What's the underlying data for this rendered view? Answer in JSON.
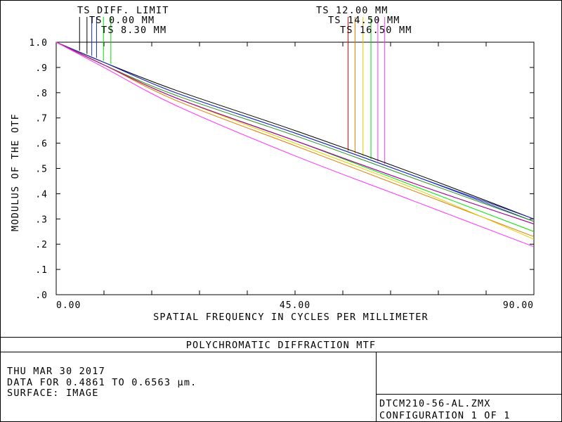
{
  "chart_data": {
    "type": "line",
    "xlabel": "SPATIAL FREQUENCY IN CYCLES PER MILLIMETER",
    "ylabel": "MODULUS OF THE OTF",
    "xlim": [
      0,
      90
    ],
    "ylim": [
      0,
      1
    ],
    "x_tick_labels": [
      "0.00",
      "45.00",
      "90.00"
    ],
    "y_tick_labels": [
      ".0",
      ".1",
      ".2",
      ".3",
      ".4",
      ".5",
      ".6",
      ".7",
      ".8",
      ".9",
      "1.0"
    ],
    "grid": false,
    "x": [
      0,
      9,
      22.5,
      45,
      67.5,
      90
    ],
    "series": [
      {
        "name": "TS DIFF. LIMIT",
        "color": "#000000",
        "values": [
          1.0,
          0.92,
          0.81,
          0.65,
          0.48,
          0.3
        ]
      },
      {
        "name": "TS 0.00 MM",
        "color": "#1a2bb0",
        "values": [
          1.0,
          0.92,
          0.8,
          0.64,
          0.47,
          0.3
        ]
      },
      {
        "name": "TS 8.30 MM",
        "color": "#1a2bb0",
        "values": [
          1.0,
          0.92,
          0.8,
          0.64,
          0.47,
          0.29
        ]
      },
      {
        "name": "TS 8.30 MM",
        "color": "#2d8f2d",
        "values": [
          1.0,
          0.91,
          0.79,
          0.63,
          0.46,
          0.29
        ]
      },
      {
        "name": "TS 8.30 MM",
        "color": "#00e000",
        "values": [
          1.0,
          0.91,
          0.78,
          0.61,
          0.43,
          0.25
        ]
      },
      {
        "name": "TS 12.00 MM",
        "color": "#ff0000",
        "values": [
          1.0,
          0.91,
          0.78,
          0.61,
          0.44,
          0.28
        ]
      },
      {
        "name": "TS 14.50 MM",
        "color": "#e07a00",
        "values": [
          1.0,
          0.91,
          0.77,
          0.59,
          0.41,
          0.23
        ]
      },
      {
        "name": "TS 14.50 MM",
        "color": "#e0d000",
        "values": [
          1.0,
          0.91,
          0.78,
          0.6,
          0.42,
          0.22
        ]
      },
      {
        "name": "TS 16.50 MM",
        "color": "#a000b0",
        "values": [
          1.0,
          0.91,
          0.78,
          0.61,
          0.44,
          0.28
        ]
      },
      {
        "name": "TS 16.50 MM",
        "color": "#ff30ff",
        "values": [
          1.0,
          0.9,
          0.75,
          0.55,
          0.37,
          0.19
        ]
      }
    ],
    "legend_groups": [
      {
        "labels": [
          "TS DIFF. LIMIT",
          "TS 0.00 MM",
          "TS 8.30 MM"
        ]
      },
      {
        "labels": [
          "TS 12.00 MM",
          "TS 14.50 MM",
          "TS 16.50 MM"
        ]
      }
    ],
    "legend_markers": [
      {
        "x": 4.4,
        "color": "#000000"
      },
      {
        "x": 5.8,
        "color": "#000000"
      },
      {
        "x": 6.7,
        "color": "#1a2bb0"
      },
      {
        "x": 7.6,
        "color": "#1a2bb0"
      },
      {
        "x": 8.9,
        "color": "#00e000"
      },
      {
        "x": 10.3,
        "color": "#00e000"
      },
      {
        "x": 55.0,
        "color": "#ff0000"
      },
      {
        "x": 56.3,
        "color": "#e07a00"
      },
      {
        "x": 57.8,
        "color": "#e0d000"
      },
      {
        "x": 59.3,
        "color": "#00e000"
      },
      {
        "x": 60.6,
        "color": "#ff30ff"
      },
      {
        "x": 61.9,
        "color": "#ff30ff"
      }
    ]
  },
  "footer": {
    "title": "POLYCHROMATIC DIFFRACTION MTF",
    "date": "THU MAR 30 2017",
    "wavelength": "DATA FOR 0.4861 TO 0.6563 µm.",
    "surface": "SURFACE: IMAGE",
    "file": "DTCM210-56-AL.ZMX",
    "config": "CONFIGURATION 1 OF 1"
  }
}
